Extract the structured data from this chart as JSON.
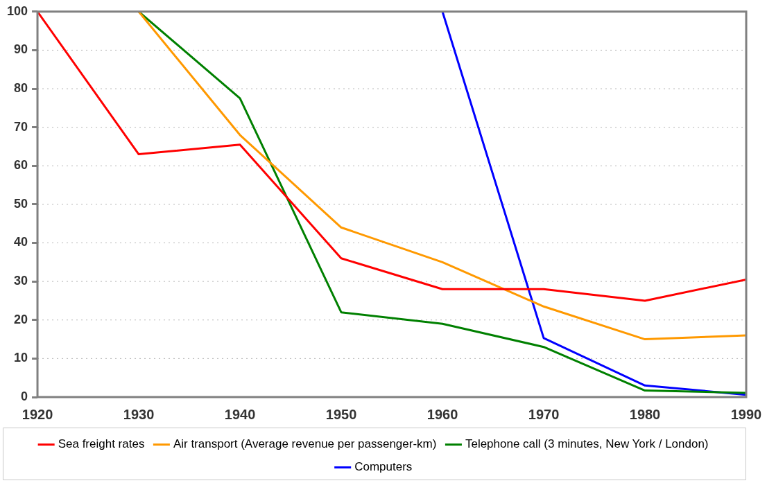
{
  "chart_data": {
    "type": "line",
    "x": [
      1920,
      1930,
      1940,
      1950,
      1960,
      1970,
      1980,
      1990
    ],
    "series": [
      {
        "name": "Sea freight rates",
        "color": "#ff0000",
        "values": [
          100,
          63,
          65.5,
          36,
          28,
          28,
          25,
          30.5
        ]
      },
      {
        "name": "Air transport (Average revenue per passenger-km)",
        "color": "#ff9900",
        "values": [
          null,
          100,
          68,
          44,
          35,
          23.5,
          15,
          16
        ]
      },
      {
        "name": "Telephone call (3 minutes, New York / London)",
        "color": "#008000",
        "values": [
          null,
          100,
          77.5,
          22,
          19,
          13,
          1.7,
          1.1
        ]
      },
      {
        "name": "Computers",
        "color": "#0000ff",
        "values": [
          null,
          null,
          null,
          null,
          100,
          15.3,
          3,
          0.6
        ]
      }
    ],
    "xlim": [
      1920,
      1990
    ],
    "xticks": [
      1920,
      1930,
      1940,
      1950,
      1960,
      1970,
      1980,
      1990
    ],
    "ylim": [
      0,
      100
    ],
    "yticks": [
      0,
      10,
      20,
      30,
      40,
      50,
      60,
      70,
      80,
      90,
      100
    ],
    "grid": "y",
    "legend": "bottom",
    "marker": "none",
    "line_style": "solid"
  }
}
